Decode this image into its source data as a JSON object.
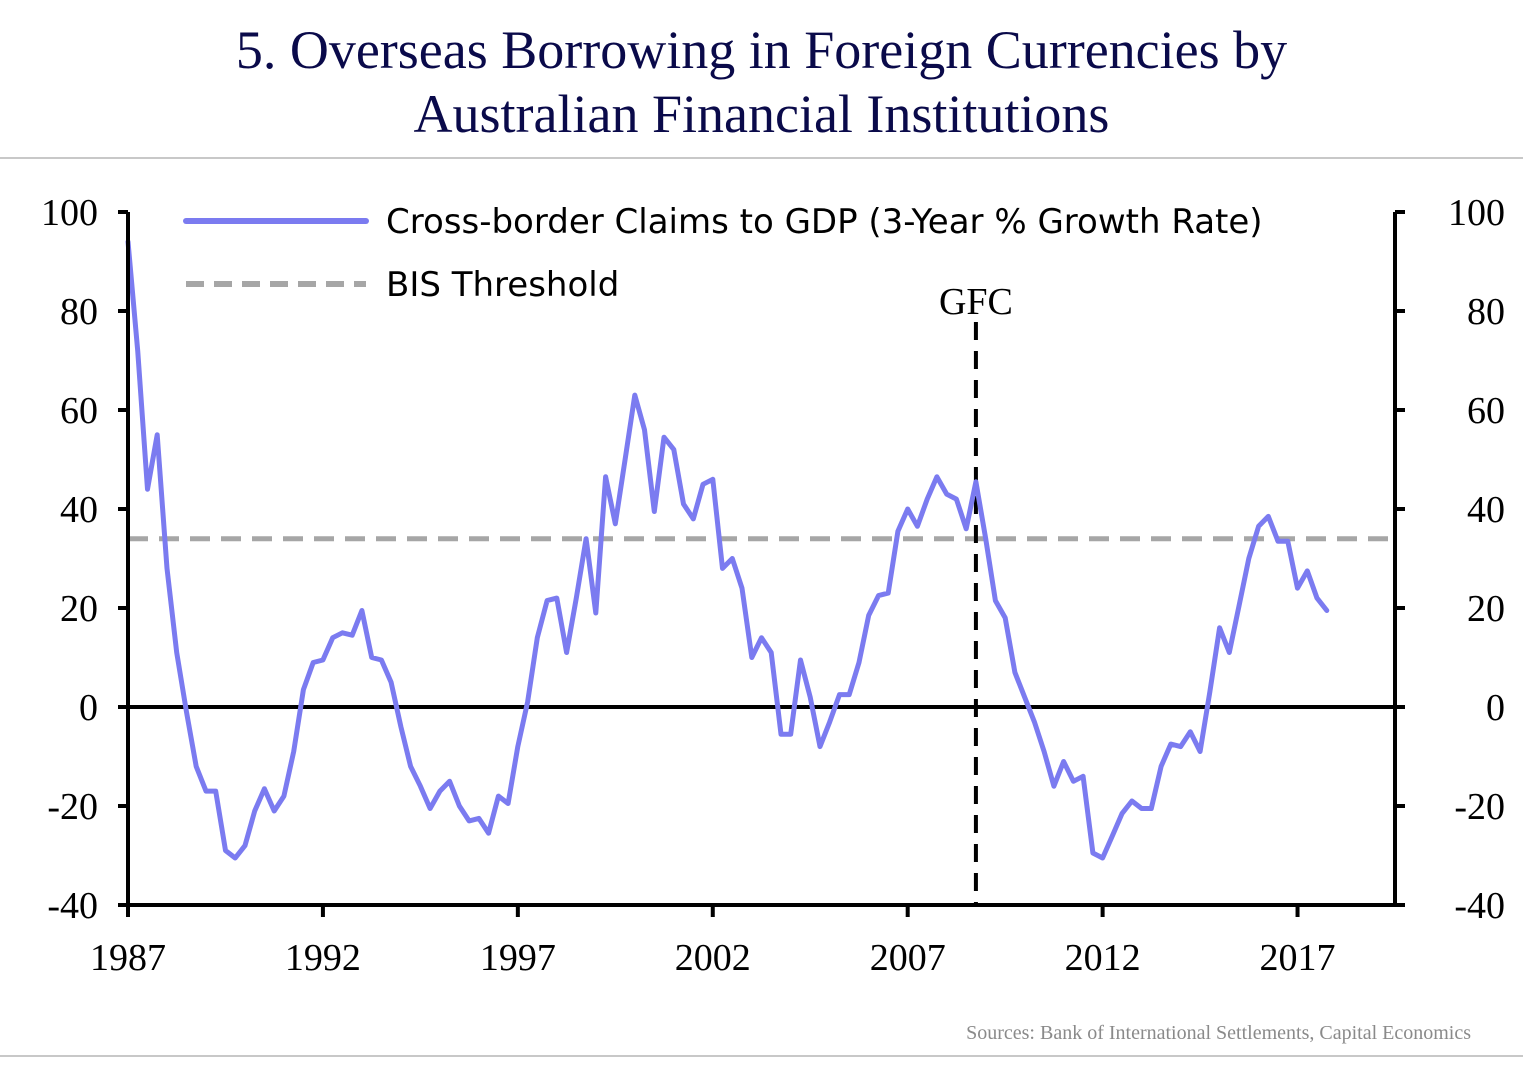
{
  "chart": {
    "title_line1": "5. Overseas Borrowing in Foreign Currencies by",
    "title_line2": "Australian Financial Institutions",
    "source": "Sources: Bank of International Settlements, Capital Economics"
  },
  "colors": {
    "series": "#7b7bf0",
    "threshold": "#a6a6a6",
    "axis": "#000000",
    "title": "#0a0a4a"
  },
  "chart_data": {
    "type": "line",
    "title": "5. Overseas Borrowing in Foreign Currencies by Australian Financial Institutions",
    "xlabel": "",
    "ylabel": "",
    "xlim": [
      1987,
      2019.5
    ],
    "ylim": [
      -40,
      100
    ],
    "x_ticks": [
      1987,
      1992,
      1997,
      2002,
      2007,
      2012,
      2017
    ],
    "y_ticks": [
      -40,
      -20,
      0,
      20,
      40,
      60,
      80,
      100
    ],
    "y_tick_labels_left": [
      "-40",
      "-20",
      "0",
      "20",
      "40",
      "60",
      "80",
      "100"
    ],
    "y_tick_labels_right": [
      "-40",
      "-20",
      "0",
      "20",
      "40",
      "60",
      "80",
      "100"
    ],
    "x_tick_labels": [
      "1987",
      "1992",
      "1997",
      "2002",
      "2007",
      "2012",
      "2017"
    ],
    "legend_position": "top-left",
    "grid": false,
    "series": [
      {
        "name": "Cross-border Claims to GDP (3-Year % Growth Rate)",
        "x": [
          1987.0,
          1987.25,
          1987.5,
          1987.75,
          1988.0,
          1988.25,
          1988.5,
          1988.75,
          1989.0,
          1989.25,
          1989.5,
          1989.75,
          1990.0,
          1990.25,
          1990.5,
          1990.75,
          1991.0,
          1991.25,
          1991.5,
          1991.75,
          1992.0,
          1992.25,
          1992.5,
          1992.75,
          1993.0,
          1993.25,
          1993.5,
          1993.75,
          1994.0,
          1994.25,
          1994.5,
          1994.75,
          1995.0,
          1995.25,
          1995.5,
          1995.75,
          1996.0,
          1996.25,
          1996.5,
          1996.75,
          1997.0,
          1997.25,
          1997.5,
          1997.75,
          1998.0,
          1998.25,
          1998.5,
          1998.75,
          1999.0,
          1999.25,
          1999.5,
          1999.75,
          2000.0,
          2000.25,
          2000.5,
          2000.75,
          2001.0,
          2001.25,
          2001.5,
          2001.75,
          2002.0,
          2002.25,
          2002.5,
          2002.75,
          2003.0,
          2003.25,
          2003.5,
          2003.75,
          2004.0,
          2004.25,
          2004.5,
          2004.75,
          2005.0,
          2005.25,
          2005.5,
          2005.75,
          2006.0,
          2006.25,
          2006.5,
          2006.75,
          2007.0,
          2007.25,
          2007.5,
          2007.75,
          2008.0,
          2008.25,
          2008.5,
          2008.75,
          2009.0,
          2009.25,
          2009.5,
          2009.75,
          2010.0,
          2010.25,
          2010.5,
          2010.75,
          2011.0,
          2011.25,
          2011.5,
          2011.75,
          2012.0,
          2012.25,
          2012.5,
          2012.75,
          2013.0,
          2013.25,
          2013.5,
          2013.75,
          2014.0,
          2014.25,
          2014.5,
          2014.75,
          2015.0,
          2015.25,
          2015.5,
          2015.75,
          2016.0,
          2016.25,
          2016.5,
          2016.75,
          2017.0,
          2017.25,
          2017.5,
          2017.75
        ],
        "values": [
          94,
          72,
          44,
          55,
          28,
          11,
          -1,
          -12,
          -17,
          -17,
          -29,
          -30.5,
          -28,
          -21,
          -16.5,
          -21,
          -18,
          -9,
          3.5,
          9,
          9.5,
          14,
          15,
          14.5,
          19.5,
          10,
          9.5,
          5,
          -4,
          -12,
          -16,
          -20.5,
          -17,
          -15,
          -20,
          -23,
          -22.5,
          -25.5,
          -18,
          -19.5,
          -8,
          1,
          14,
          21.5,
          22,
          11,
          22,
          34,
          19,
          46.5,
          37,
          50,
          63,
          56,
          39.5,
          54.5,
          52,
          41,
          38,
          45,
          46,
          28,
          30,
          24,
          10,
          14,
          11,
          -5.5,
          -5.5,
          9.5,
          2,
          -8,
          -3,
          2.5,
          2.5,
          9,
          18.5,
          22.5,
          23,
          35.5,
          40,
          36.5,
          42,
          46.5,
          43,
          42,
          36,
          45.5,
          34,
          21.5,
          18,
          7,
          2,
          -3,
          -9,
          -16,
          -11,
          -15,
          -14,
          -29.5,
          -30.5,
          -26,
          -21.5,
          -19,
          -20.5,
          -20.5,
          -12,
          -7.5,
          -8,
          -5,
          -9,
          3,
          16,
          11,
          20.5,
          30,
          36.5,
          38.5,
          33.5,
          33.5,
          24,
          27.5,
          22,
          19.5
        ]
      },
      {
        "name": "BIS Threshold",
        "constant": 34
      }
    ],
    "annotations": [
      {
        "text": "GFC",
        "x": 2008.75
      }
    ]
  }
}
